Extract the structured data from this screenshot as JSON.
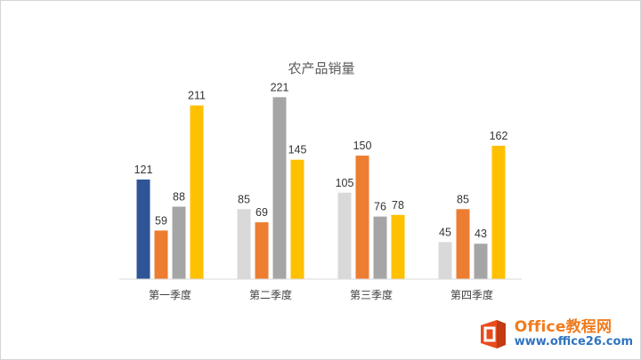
{
  "chart_data": {
    "type": "bar",
    "title": "农产品销量",
    "categories": [
      "第一季度",
      "第二季度",
      "第三季度",
      "第四季度"
    ],
    "series": [
      {
        "values": [
          121,
          85,
          105,
          45
        ]
      },
      {
        "values": [
          59,
          69,
          150,
          85
        ]
      },
      {
        "values": [
          88,
          221,
          76,
          43
        ]
      },
      {
        "values": [
          211,
          145,
          78,
          162
        ]
      }
    ],
    "colors": {
      "series": [
        "#d9d9d9",
        "#ed7d31",
        "#a5a5a5",
        "#ffc000"
      ],
      "highlight": "#2f5597",
      "axis": "#d9d9d9"
    },
    "highlighted_point": {
      "series": 0,
      "category": 0
    },
    "ylim": [
      0,
      230
    ],
    "grid": false,
    "legend": "none",
    "data_labels": true
  },
  "watermark": {
    "line1": "Office教程网",
    "line2": "www.office26.com",
    "icon": "office-logo-icon"
  }
}
